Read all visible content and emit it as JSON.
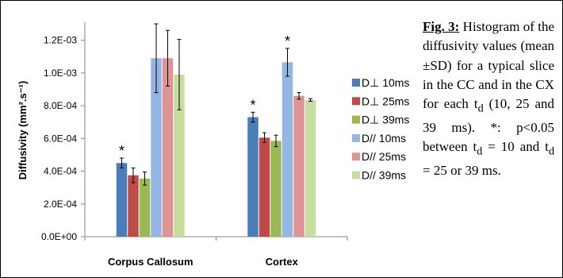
{
  "chart_data": {
    "type": "bar",
    "ylabel": "Diffusivity (mm².s⁻¹)",
    "ylim": [
      0,
      0.0013
    ],
    "yticks": [
      "0.0E+00",
      "2.0E-04",
      "4.0E-04",
      "6.0E-04",
      "8.0E-04",
      "1.0E-03",
      "1.2E-03"
    ],
    "categories": [
      "Corpus Callosum",
      "Cortex"
    ],
    "series": [
      {
        "name": "D⊥ 10ms",
        "color": "#4a7ebb",
        "values": [
          0.00045,
          0.00073
        ],
        "errors": [
          3e-05,
          3e-05
        ]
      },
      {
        "name": "D⊥ 25ms",
        "color": "#be4b48",
        "values": [
          0.000375,
          0.000605
        ],
        "errors": [
          4.5e-05,
          3e-05
        ]
      },
      {
        "name": "D⊥ 39ms",
        "color": "#98b954",
        "values": [
          0.000355,
          0.000585
        ],
        "errors": [
          4e-05,
          3.5e-05
        ]
      },
      {
        "name": "D// 10ms",
        "color": "#93b6e3",
        "values": [
          0.00109,
          0.001065
        ],
        "errors": [
          0.00021,
          8.5e-05
        ]
      },
      {
        "name": "D// 25ms",
        "color": "#dd9492",
        "values": [
          0.00109,
          0.00086
        ],
        "errors": [
          0.00017,
          2e-05
        ]
      },
      {
        "name": "D// 39ms",
        "color": "#c7dd9f",
        "values": [
          0.00099,
          0.000835
        ],
        "errors": [
          0.000215,
          8e-06
        ]
      }
    ],
    "significance_markers": [
      {
        "category": "Corpus Callosum",
        "series": "D⊥ 10ms",
        "symbol": "*"
      },
      {
        "category": "Cortex",
        "series": "D⊥ 10ms",
        "symbol": "*"
      },
      {
        "category": "Cortex",
        "series": "D// 10ms",
        "symbol": "*"
      }
    ],
    "legend_position": "right",
    "grid": false
  },
  "caption": {
    "figure_label": "Fig. 3:",
    "text": "Histogram of the diffusivity values (mean ±SD) for a typical slice in the CC and in the CX for each t_d (10, 25 and 39 ms). *: p<0.05 between t_d = 10 and t_d = 25 or 39 ms."
  }
}
